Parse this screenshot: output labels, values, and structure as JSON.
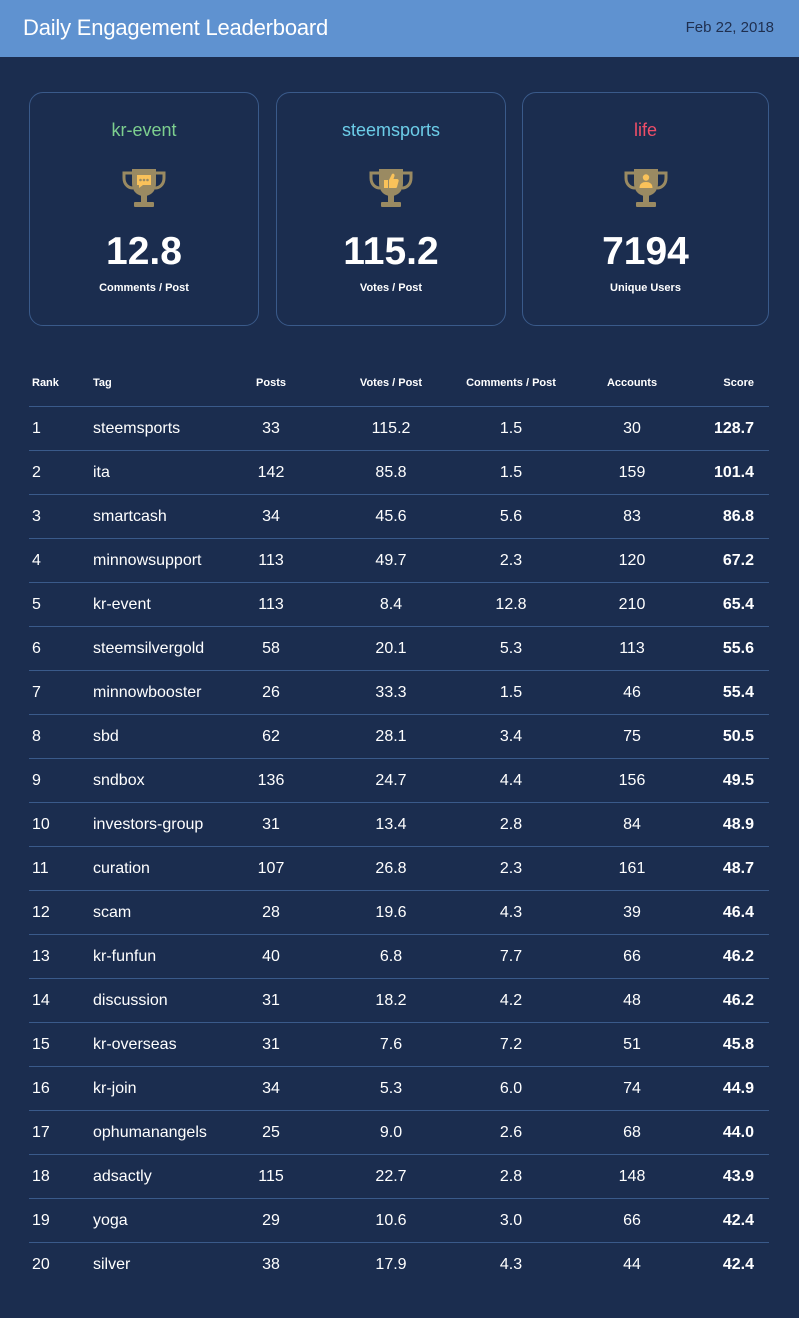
{
  "header": {
    "title": "Daily Engagement Leaderboard",
    "date": "Feb 22, 2018"
  },
  "colors": {
    "background": "#1b2d4f",
    "header": "#5f92d0",
    "green": "#7dcf8f",
    "blue": "#6ccde8",
    "red": "#ef4e68",
    "orange": "#fac25a",
    "trophy": "#9a8a62"
  },
  "cards": [
    {
      "tag": "kr-event",
      "value": "12.8",
      "label": "Comments / Post",
      "icon": "trophy-comment-icon",
      "color": "green"
    },
    {
      "tag": "steemsports",
      "value": "115.2",
      "label": "Votes / Post",
      "icon": "trophy-thumbs-up-icon",
      "color": "blue"
    },
    {
      "tag": "life",
      "value": "7194",
      "label": "Unique Users",
      "icon": "trophy-user-icon",
      "color": "red"
    }
  ],
  "table": {
    "headers": {
      "rank": "Rank",
      "tag": "Tag",
      "posts": "Posts",
      "votes": "Votes / Post",
      "comments": "Comments / Post",
      "accounts": "Accounts",
      "score": "Score"
    },
    "rows": [
      {
        "rank": "1",
        "tag": "steemsports",
        "posts": "33",
        "votes": "115.2",
        "comments": "1.5",
        "accounts": "30",
        "score": "128.7",
        "color": "orange"
      },
      {
        "rank": "2",
        "tag": "ita",
        "posts": "142",
        "votes": "85.8",
        "comments": "1.5",
        "accounts": "159",
        "score": "101.4",
        "color": "red"
      },
      {
        "rank": "3",
        "tag": "smartcash",
        "posts": "34",
        "votes": "45.6",
        "comments": "5.6",
        "accounts": "83",
        "score": "86.8",
        "color": "blue"
      },
      {
        "rank": "4",
        "tag": "minnowsupport",
        "posts": "113",
        "votes": "49.7",
        "comments": "2.3",
        "accounts": "120",
        "score": "67.2",
        "color": "green"
      },
      {
        "rank": "5",
        "tag": "kr-event",
        "posts": "113",
        "votes": "8.4",
        "comments": "12.8",
        "accounts": "210",
        "score": "65.4",
        "color": "orange"
      },
      {
        "rank": "6",
        "tag": "steemsilvergold",
        "posts": "58",
        "votes": "20.1",
        "comments": "5.3",
        "accounts": "113",
        "score": "55.6",
        "color": "red"
      },
      {
        "rank": "7",
        "tag": "minnowbooster",
        "posts": "26",
        "votes": "33.3",
        "comments": "1.5",
        "accounts": "46",
        "score": "55.4",
        "color": "blue"
      },
      {
        "rank": "8",
        "tag": "sbd",
        "posts": "62",
        "votes": "28.1",
        "comments": "3.4",
        "accounts": "75",
        "score": "50.5",
        "color": "green"
      },
      {
        "rank": "9",
        "tag": "sndbox",
        "posts": "136",
        "votes": "24.7",
        "comments": "4.4",
        "accounts": "156",
        "score": "49.5",
        "color": "orange"
      },
      {
        "rank": "10",
        "tag": "investors-group",
        "posts": "31",
        "votes": "13.4",
        "comments": "2.8",
        "accounts": "84",
        "score": "48.9",
        "color": "red"
      },
      {
        "rank": "11",
        "tag": "curation",
        "posts": "107",
        "votes": "26.8",
        "comments": "2.3",
        "accounts": "161",
        "score": "48.7",
        "color": "blue"
      },
      {
        "rank": "12",
        "tag": "scam",
        "posts": "28",
        "votes": "19.6",
        "comments": "4.3",
        "accounts": "39",
        "score": "46.4",
        "color": "green"
      },
      {
        "rank": "13",
        "tag": "kr-funfun",
        "posts": "40",
        "votes": "6.8",
        "comments": "7.7",
        "accounts": "66",
        "score": "46.2",
        "color": "orange"
      },
      {
        "rank": "14",
        "tag": "discussion",
        "posts": "31",
        "votes": "18.2",
        "comments": "4.2",
        "accounts": "48",
        "score": "46.2",
        "color": "red"
      },
      {
        "rank": "15",
        "tag": "kr-overseas",
        "posts": "31",
        "votes": "7.6",
        "comments": "7.2",
        "accounts": "51",
        "score": "45.8",
        "color": "blue"
      },
      {
        "rank": "16",
        "tag": "kr-join",
        "posts": "34",
        "votes": "5.3",
        "comments": "6.0",
        "accounts": "74",
        "score": "44.9",
        "color": "green"
      },
      {
        "rank": "17",
        "tag": "ophumanangels",
        "posts": "25",
        "votes": "9.0",
        "comments": "2.6",
        "accounts": "68",
        "score": "44.0",
        "color": "orange"
      },
      {
        "rank": "18",
        "tag": "adsactly",
        "posts": "115",
        "votes": "22.7",
        "comments": "2.8",
        "accounts": "148",
        "score": "43.9",
        "color": "red"
      },
      {
        "rank": "19",
        "tag": "yoga",
        "posts": "29",
        "votes": "10.6",
        "comments": "3.0",
        "accounts": "66",
        "score": "42.4",
        "color": "blue"
      },
      {
        "rank": "20",
        "tag": "silver",
        "posts": "38",
        "votes": "17.9",
        "comments": "4.3",
        "accounts": "44",
        "score": "42.4",
        "color": "green"
      }
    ]
  }
}
